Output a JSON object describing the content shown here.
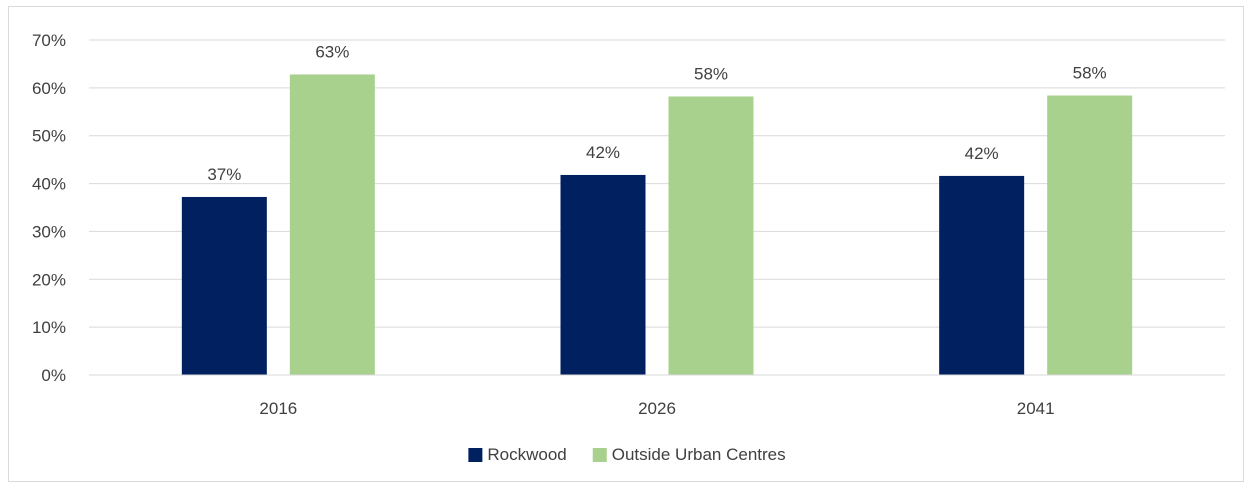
{
  "chart_data": {
    "type": "bar",
    "title": "",
    "xlabel": "",
    "ylabel": "",
    "categories": [
      "2016",
      "2026",
      "2041"
    ],
    "series": [
      {
        "name": "Rockwood",
        "values": [
          37.2,
          41.8,
          41.6
        ],
        "labels": [
          "37%",
          "42%",
          "42%"
        ],
        "color": "#002060"
      },
      {
        "name": "Outside Urban Centres",
        "values": [
          62.8,
          58.2,
          58.4
        ],
        "labels": [
          "63%",
          "58%",
          "58%"
        ],
        "color": "#a9d18e"
      }
    ],
    "ylim": [
      0,
      70
    ],
    "yticks": [
      0,
      10,
      20,
      30,
      40,
      50,
      60,
      70
    ],
    "ytick_labels": [
      "0%",
      "10%",
      "20%",
      "30%",
      "40%",
      "50%",
      "60%",
      "70%"
    ],
    "grid": true,
    "gridline_color": "#d9d9d9",
    "legend": "bottom"
  }
}
